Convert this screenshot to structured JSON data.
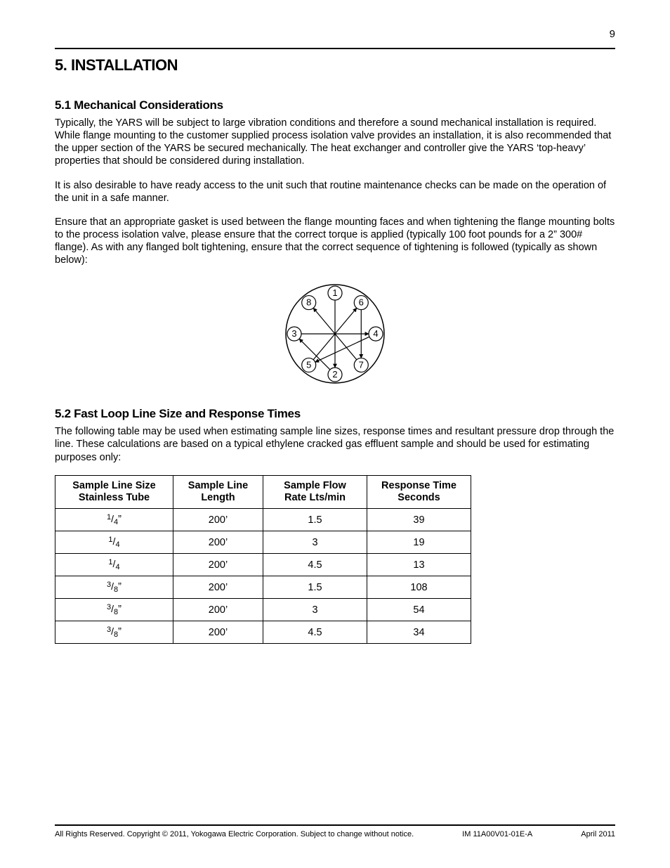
{
  "page_number": "9",
  "h1": "5. INSTALLATION",
  "section51": {
    "heading": "5.1 Mechanical Considerations",
    "p1": "Typically, the YARS will be subject to large vibration conditions and therefore a sound mechanical installation is required. While flange mounting to the customer supplied process isolation valve provides an installation, it is also recommended that the upper section of the YARS be secured mechanically. The heat exchanger and controller give the YARS ‘top-heavy’ properties that should be considered during installation.",
    "p2": "It is also desirable to have ready access to the unit such that routine maintenance checks can be made on the operation of the unit in a safe manner.",
    "p3": "Ensure that an appropriate gasket is used between the flange mounting faces and when tightening the flange mounting bolts to the process isolation valve, please ensure that the correct torque is applied (typically 100 foot pounds for a 2” 300# flange). As with any flanged bolt tightening, ensure that the correct sequence of tightening is followed (typically as shown below):"
  },
  "diagram": {
    "type": "flange-bolt-sequence",
    "radius_outer": 70,
    "node_radius": 10,
    "stroke": "#000000",
    "fill": "#ffffff",
    "font_size": 13,
    "nodes": [
      {
        "label": "1",
        "angle_deg": 270
      },
      {
        "label": "2",
        "angle_deg": 90
      },
      {
        "label": "3",
        "angle_deg": 180
      },
      {
        "label": "4",
        "angle_deg": 0
      },
      {
        "label": "5",
        "angle_deg": 130
      },
      {
        "label": "6",
        "angle_deg": 310
      },
      {
        "label": "7",
        "angle_deg": 50
      },
      {
        "label": "8",
        "angle_deg": 230
      }
    ],
    "arrows": [
      {
        "from": 1,
        "to": 2
      },
      {
        "from": 2,
        "to": 3
      },
      {
        "from": 3,
        "to": 4
      },
      {
        "from": 4,
        "to": 5
      },
      {
        "from": 5,
        "to": 6
      },
      {
        "from": 6,
        "to": 7
      },
      {
        "from": 7,
        "to": 8
      }
    ]
  },
  "section52": {
    "heading": "5.2 Fast Loop Line Size and Response Times",
    "p1": "The following table may be used when estimating sample line sizes, response times and resultant pressure drop through the line. These calculations are based on a typical ethylene cracked gas effluent sample and should be used for estimating purposes only:"
  },
  "table": {
    "columns": [
      {
        "l1": "Sample Line Size",
        "l2": "Stainless Tube"
      },
      {
        "l1": "Sample Line",
        "l2": "Length"
      },
      {
        "l1": "Sample Flow",
        "l2": "Rate Lts/min"
      },
      {
        "l1": "Response Time",
        "l2": "Seconds"
      }
    ],
    "rows": [
      {
        "size_num": "1",
        "size_den": "4",
        "size_suffix": "”",
        "length": "200’",
        "flow": "1.5",
        "resp": "39"
      },
      {
        "size_num": "1",
        "size_den": "4",
        "size_suffix": "",
        "length": "200’",
        "flow": "3",
        "resp": "19"
      },
      {
        "size_num": "1",
        "size_den": "4",
        "size_suffix": "",
        "length": "200’",
        "flow": "4.5",
        "resp": "13"
      },
      {
        "size_num": "3",
        "size_den": "8",
        "size_suffix": "”",
        "length": "200’",
        "flow": "1.5",
        "resp": "108"
      },
      {
        "size_num": "3",
        "size_den": "8",
        "size_suffix": "”",
        "length": "200’",
        "flow": "3",
        "resp": "54"
      },
      {
        "size_num": "3",
        "size_den": "8",
        "size_suffix": "”",
        "length": "200’",
        "flow": "4.5",
        "resp": "34"
      }
    ]
  },
  "footer": {
    "left": "All Rights Reserved. Copyright © 2011, Yokogawa Electric Corporation. Subject to change without notice.",
    "center": "IM 11A00V01-01E-A",
    "right": "April 2011"
  }
}
